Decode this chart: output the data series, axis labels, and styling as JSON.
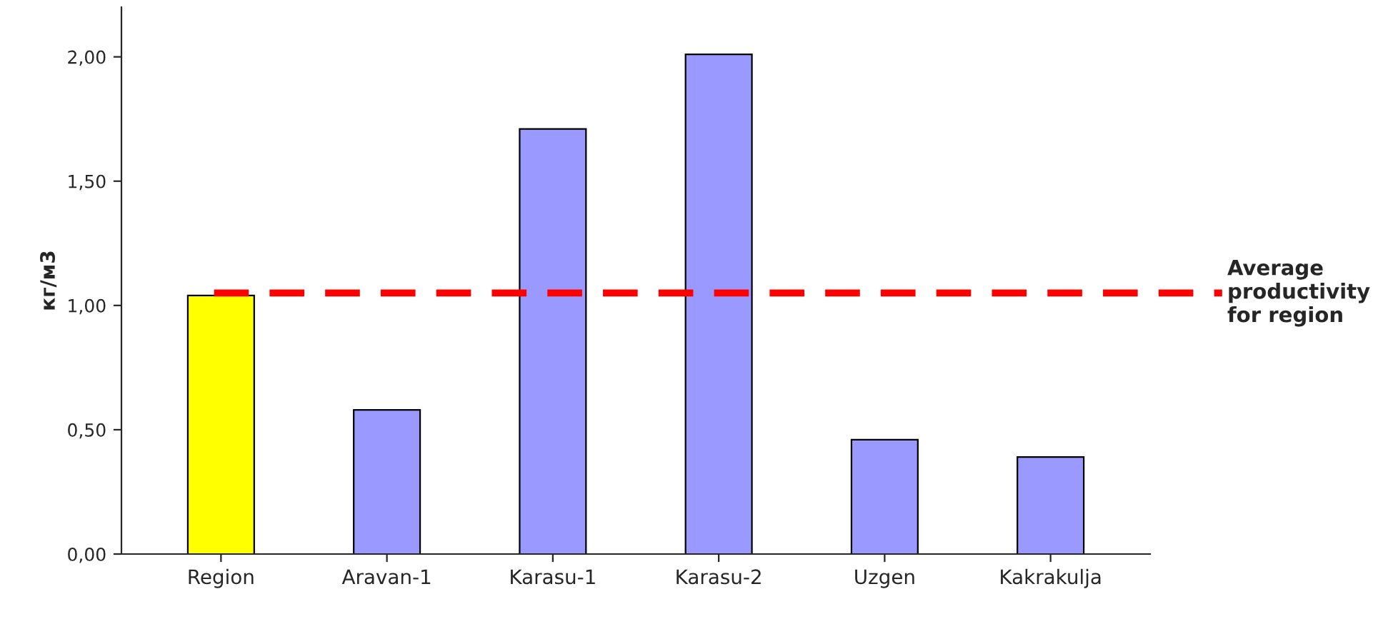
{
  "chart_data": {
    "type": "bar",
    "ylabel": "кг/м3",
    "categories": [
      "Region",
      "Aravan-1",
      "Karasu-1",
      "Karasu-2",
      "Uzgen",
      "Kakrakulja"
    ],
    "values": [
      1.04,
      0.58,
      1.71,
      2.01,
      0.46,
      0.39
    ],
    "colors": [
      "#ffff00",
      "#9999ff",
      "#9999ff",
      "#9999ff",
      "#9999ff",
      "#9999ff"
    ],
    "ylim": [
      0,
      2.2
    ],
    "yticks": [
      {
        "value": 0,
        "label": "0,00"
      },
      {
        "value": 0.5,
        "label": "0,50"
      },
      {
        "value": 1.0,
        "label": "1,00"
      },
      {
        "value": 1.5,
        "label": "1,50"
      },
      {
        "value": 2.0,
        "label": "2,00"
      }
    ],
    "ref_lines": [
      {
        "axis": "y",
        "value": 1.05,
        "label": "Average productivity for region",
        "color": "#ff0000",
        "line_style": "dashed"
      }
    ],
    "grid": false
  }
}
